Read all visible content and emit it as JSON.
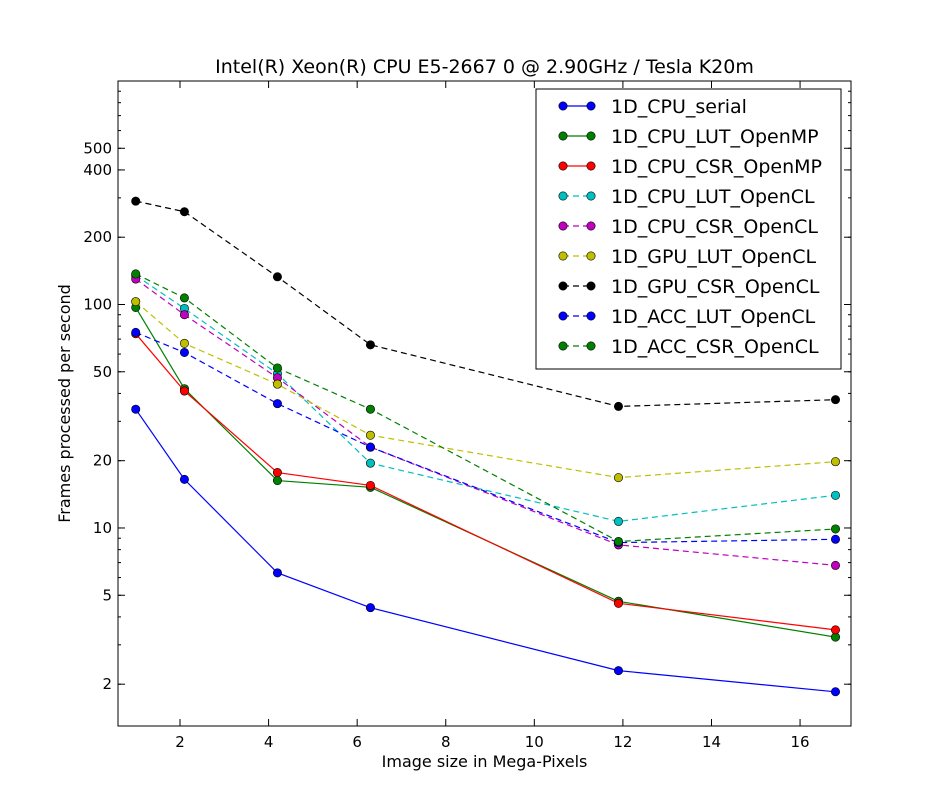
{
  "chart_data": {
    "type": "line",
    "title": "Intel(R) Xeon(R) CPU E5-2667 0 @ 2.90GHz / Tesla K20m",
    "xlabel": "Image size in Mega-Pixels",
    "ylabel": "Frames processed per second",
    "xlim": [
      0.6,
      17.15
    ],
    "ylim": [
      1.3,
      1000
    ],
    "yscale": "log",
    "xticks": [
      2,
      4,
      6,
      8,
      10,
      12,
      14,
      16
    ],
    "yticks": [
      2,
      5,
      10,
      20,
      50,
      100,
      200,
      400,
      500
    ],
    "grid": false,
    "legend_position": "top-right",
    "x": [
      1.0,
      2.1,
      4.2,
      6.3,
      11.9,
      16.8
    ],
    "series": [
      {
        "name": "1D_CPU_serial",
        "color": "#0000ff",
        "dashed": false,
        "values": [
          34,
          16.5,
          6.3,
          4.4,
          2.3,
          1.85
        ]
      },
      {
        "name": "1D_CPU_LUT_OpenMP",
        "color": "#008000",
        "dashed": false,
        "values": [
          97,
          42,
          16.3,
          15.2,
          4.7,
          3.25
        ]
      },
      {
        "name": "1D_CPU_CSR_OpenMP",
        "color": "#ff0000",
        "dashed": false,
        "values": [
          74,
          41,
          17.7,
          15.5,
          4.6,
          3.5
        ]
      },
      {
        "name": "1D_CPU_LUT_OpenCL",
        "color": "#00bfbf",
        "dashed": true,
        "values": [
          135,
          96,
          49,
          19.5,
          10.7,
          14
        ]
      },
      {
        "name": "1D_CPU_CSR_OpenCL",
        "color": "#bf00bf",
        "dashed": true,
        "values": [
          130,
          90,
          47,
          23,
          8.4,
          6.8
        ]
      },
      {
        "name": "1D_GPU_LUT_OpenCL",
        "color": "#bfbf00",
        "dashed": true,
        "values": [
          103,
          67,
          44,
          26,
          16.8,
          19.8
        ]
      },
      {
        "name": "1D_GPU_CSR_OpenCL",
        "color": "#000000",
        "dashed": true,
        "values": [
          290,
          260,
          133,
          66,
          35,
          37.5
        ]
      },
      {
        "name": "1D_ACC_LUT_OpenCL",
        "color": "#0000ff",
        "dashed": true,
        "values": [
          75,
          61,
          36,
          23,
          8.6,
          8.9
        ]
      },
      {
        "name": "1D_ACC_CSR_OpenCL",
        "color": "#008000",
        "dashed": true,
        "values": [
          137,
          107,
          52,
          34,
          8.7,
          9.9
        ]
      }
    ]
  }
}
